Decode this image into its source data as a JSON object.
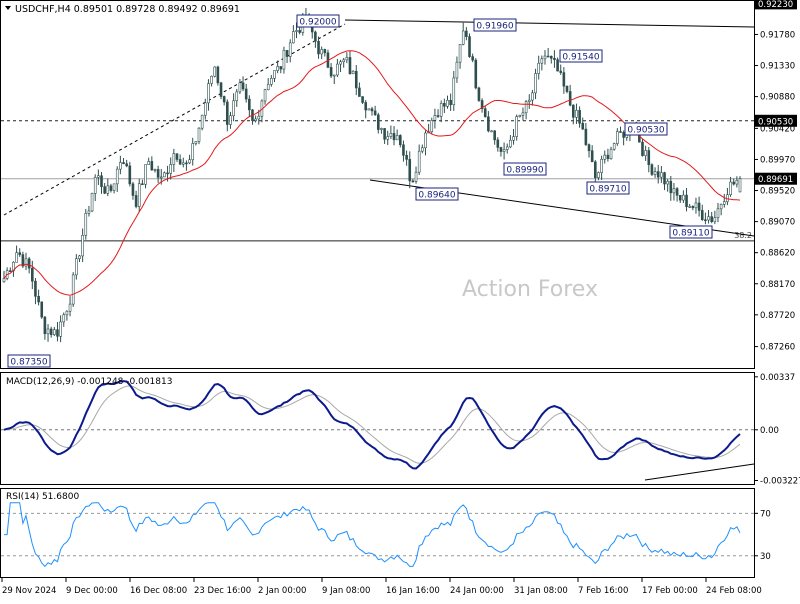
{
  "header": {
    "symbol_line": "USDCHF,H4  0.89501 0.89728 0.89492 0.89691"
  },
  "watermark": "Action Forex",
  "colors": {
    "candles": "#2f4f4f",
    "ma": "#e31a1c",
    "macd": "#0b1a8c",
    "macd_signal": "#a9a9a9",
    "rsi": "#1e90ff",
    "trendline": "#000000",
    "dotted": "#333333"
  },
  "chart_data": [
    {
      "type": "candlestick",
      "title": "USDCHF,H4",
      "ohlc_last": {
        "open": 0.89501,
        "high": 0.89728,
        "low": 0.89492,
        "close": 0.89691
      },
      "ylim": [
        0.8695,
        0.9225
      ],
      "y_ticks": [
        "0.92230",
        "0.91780",
        "0.91330",
        "0.90880",
        "0.90420",
        "0.89970",
        "0.89520",
        "0.89070",
        "0.88620",
        "0.88170",
        "0.87720",
        "0.87260"
      ],
      "price_tags": [
        {
          "value": 0.9223,
          "label": "0.92230",
          "style": "dark"
        },
        {
          "value": 0.9053,
          "label": "0.90530",
          "style": "dark"
        },
        {
          "value": 0.89691,
          "label": "0.89691",
          "style": "dark"
        }
      ],
      "x_labels": [
        "29 Nov 2024",
        "9 Dec 00:00",
        "16 Dec 08:00",
        "23 Dec 16:00",
        "2 Jan 00:00",
        "9 Jan 08:00",
        "16 Jan 16:00",
        "24 Jan 00:00",
        "31 Jan 08:00",
        "7 Feb 16:00",
        "17 Feb 00:00",
        "24 Feb 08:00"
      ],
      "swing_points": [
        {
          "label": "0.87350",
          "value": 0.8735
        },
        {
          "label": "0.92000",
          "value": 0.92
        },
        {
          "label": "0.89640",
          "value": 0.8964
        },
        {
          "label": "0.91960",
          "value": 0.9196
        },
        {
          "label": "0.89990",
          "value": 0.8999
        },
        {
          "label": "0.91540",
          "value": 0.9154
        },
        {
          "label": "0.90530",
          "value": 0.9053
        },
        {
          "label": "0.89710",
          "value": 0.8971
        },
        {
          "label": "0.89110",
          "value": 0.8911
        }
      ],
      "levels": [
        {
          "value": 0.9053,
          "style": "dotted"
        },
        {
          "value": 0.89691,
          "style": "solid-light"
        },
        {
          "value": 0.8879,
          "style": "solid",
          "label": "38.2"
        }
      ],
      "price_path": [
        0.8825,
        0.8865,
        0.8835,
        0.8755,
        0.8745,
        0.8795,
        0.889,
        0.8975,
        0.8945,
        0.9005,
        0.8935,
        0.8995,
        0.8965,
        0.901,
        0.8985,
        0.9055,
        0.9135,
        0.9055,
        0.91,
        0.9045,
        0.911,
        0.913,
        0.918,
        0.92,
        0.9155,
        0.9125,
        0.914,
        0.91,
        0.906,
        0.9035,
        0.9035,
        0.8965,
        0.9035,
        0.907,
        0.908,
        0.9195,
        0.91,
        0.904,
        0.9,
        0.905,
        0.908,
        0.915,
        0.913,
        0.908,
        0.904,
        0.897,
        0.901,
        0.9035,
        0.9045,
        0.899,
        0.8975,
        0.8945,
        0.8935,
        0.892,
        0.8911,
        0.8955,
        0.8969
      ]
    },
    {
      "type": "line",
      "title": "MACD(12,26,9) -0.001248 -0.001813",
      "ylim": [
        -0.00345,
        0.00355
      ],
      "y_ticks": [
        "0.00337",
        "0.00",
        "-0.003227"
      ]
    },
    {
      "type": "line",
      "title": "RSI(14) 51.6800",
      "ylim": [
        10,
        92
      ],
      "y_ticks": [
        "70",
        "30"
      ],
      "levels": [
        70,
        30
      ]
    }
  ]
}
